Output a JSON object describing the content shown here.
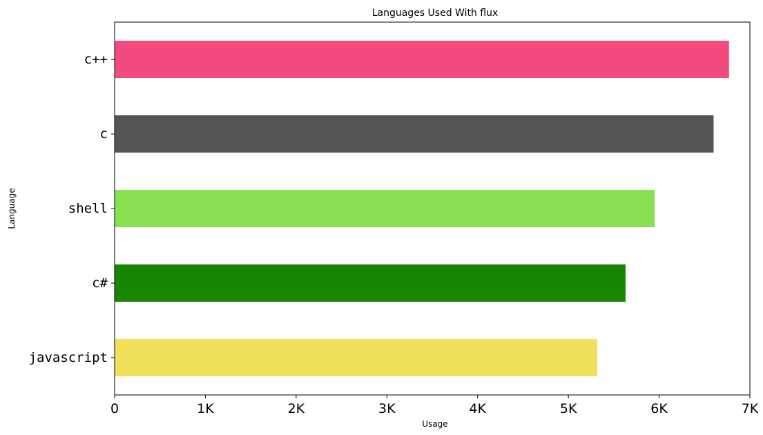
{
  "chart_data": {
    "type": "bar",
    "orientation": "horizontal",
    "title": "Languages Used With flux",
    "xlabel": "Usage",
    "ylabel": "Language",
    "categories": [
      "javascript",
      "c#",
      "shell",
      "c",
      "c++"
    ],
    "values": [
      5320,
      5630,
      5950,
      6600,
      6770
    ],
    "colors": [
      "#f1e05a",
      "#178600",
      "#89e051",
      "#555555",
      "#f34b7d"
    ],
    "xlim": [
      0,
      7000
    ],
    "xticks": [
      0,
      1000,
      2000,
      3000,
      4000,
      5000,
      6000,
      7000
    ],
    "xtick_labels": [
      "0",
      "1K",
      "2K",
      "3K",
      "4K",
      "5K",
      "6K",
      "7K"
    ],
    "grid": false,
    "legend": "none"
  }
}
